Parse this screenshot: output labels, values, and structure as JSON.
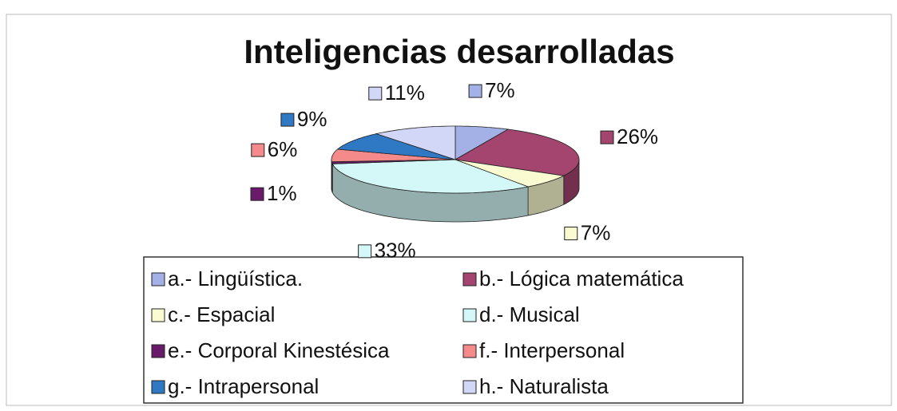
{
  "chart_data": {
    "type": "pie",
    "title": "Inteligencias desarrolladas",
    "categories": [
      "a.- Lingüística.",
      "b.- Lógica matemática",
      "c.- Espacial",
      "d.- Musical",
      "e.- Corporal Kinestésica",
      "f.-  Interpersonal",
      "g.- Intrapersonal",
      "h.- Naturalista"
    ],
    "values": [
      7,
      26,
      7,
      33,
      1,
      6,
      9,
      11
    ],
    "value_labels": [
      "7%",
      "26%",
      "7%",
      "33%",
      "1%",
      "6%",
      "9%",
      "11%"
    ],
    "colors": [
      "#a3b1e6",
      "#a3456f",
      "#fbfbd2",
      "#d4f7f7",
      "#6a1a6a",
      "#f48a8a",
      "#2f78c4",
      "#d2d6f7"
    ],
    "legend": "bottom"
  }
}
